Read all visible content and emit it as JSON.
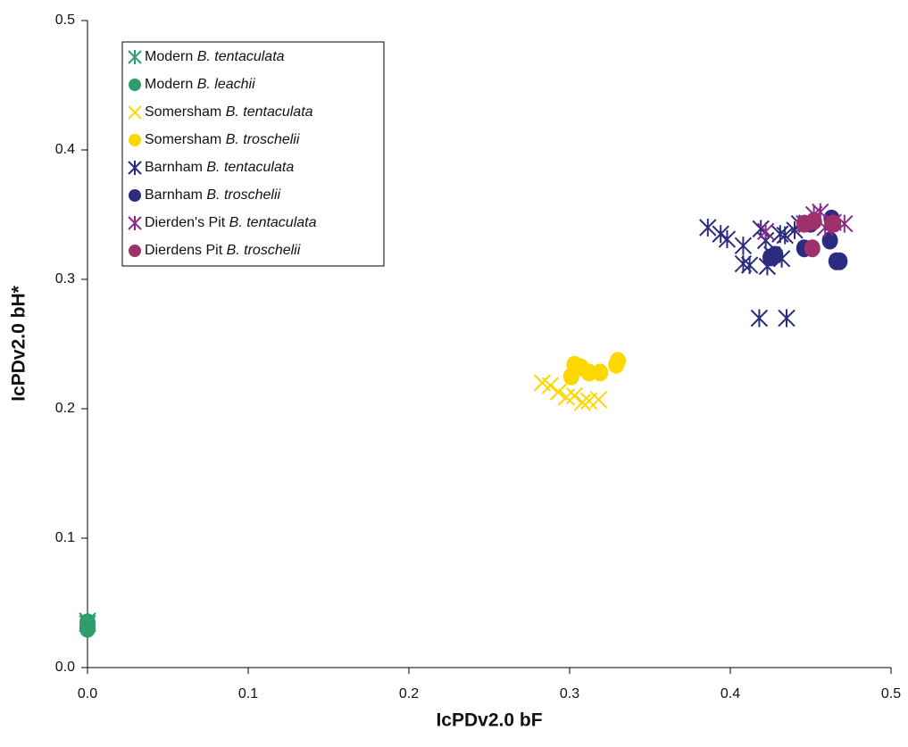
{
  "chart_data": {
    "type": "scatter",
    "xlabel": "IcPDv2.0 bF",
    "ylabel": "IcPDv2.0 bH*",
    "xlim": [
      0,
      0.5
    ],
    "ylim": [
      0,
      0.5
    ],
    "xticks": [
      {
        "value": 0,
        "label": "0.0"
      },
      0.1,
      0.2,
      0.3,
      0.4,
      0.5
    ],
    "yticks": [
      {
        "value": 0,
        "label": "0.0"
      },
      0.1,
      0.2,
      0.3,
      0.4,
      0.5
    ],
    "legend": "upper left",
    "series": [
      {
        "name": "Modern B. tentaculata",
        "color": "#2e9e6e",
        "marker": "asterisk",
        "x": [
          0,
          0
        ],
        "y": [
          0.036,
          0.034
        ]
      },
      {
        "name": "Modern B. leachii",
        "color": "#2e9e6e",
        "marker": "circle",
        "x": [
          0,
          0,
          0
        ],
        "y": [
          0.032,
          0.035,
          0.03
        ]
      },
      {
        "name": "Somersham B. tentaculata",
        "color": "#ffd700",
        "marker": "x",
        "x": [
          0.283,
          0.288,
          0.293,
          0.298,
          0.303,
          0.308,
          0.312,
          0.318
        ],
        "y": [
          0.22,
          0.218,
          0.213,
          0.209,
          0.21,
          0.205,
          0.206,
          0.207
        ]
      },
      {
        "name": "Somersham B. troschelii",
        "color": "#ffd700",
        "marker": "circle",
        "x": [
          0.303,
          0.307,
          0.301,
          0.312,
          0.319,
          0.329,
          0.33
        ],
        "y": [
          0.234,
          0.232,
          0.225,
          0.228,
          0.228,
          0.234,
          0.237
        ]
      },
      {
        "name": "Barnham B. tentaculata",
        "color": "#2b2b7f",
        "marker": "asterisk",
        "x": [
          0.386,
          0.394,
          0.398,
          0.408,
          0.408,
          0.412,
          0.419,
          0.418,
          0.435,
          0.423,
          0.426,
          0.431,
          0.434,
          0.44,
          0.432,
          0.422,
          0.443
        ],
        "y": [
          0.34,
          0.335,
          0.331,
          0.326,
          0.312,
          0.311,
          0.339,
          0.27,
          0.27,
          0.31,
          0.319,
          0.335,
          0.334,
          0.338,
          0.316,
          0.33,
          0.343
        ]
      },
      {
        "name": "Barnham B. troschelii",
        "color": "#2b2b7f",
        "marker": "circle",
        "x": [
          0.425,
          0.428,
          0.446,
          0.462,
          0.463,
          0.466,
          0.468,
          0.45
        ],
        "y": [
          0.317,
          0.319,
          0.324,
          0.33,
          0.347,
          0.314,
          0.314,
          0.343
        ]
      },
      {
        "name": "Dierden's Pit B. tentaculata",
        "color": "#8b2a8b",
        "marker": "asterisk",
        "x": [
          0.422,
          0.446,
          0.452,
          0.456,
          0.459,
          0.471,
          0.464
        ],
        "y": [
          0.337,
          0.343,
          0.35,
          0.352,
          0.34,
          0.343,
          0.344
        ]
      },
      {
        "name": "Dierdens Pit B. troschelii",
        "color": "#a0306a",
        "marker": "circle",
        "x": [
          0.446,
          0.452,
          0.451,
          0.464
        ],
        "y": [
          0.343,
          0.345,
          0.324,
          0.343
        ]
      }
    ]
  }
}
